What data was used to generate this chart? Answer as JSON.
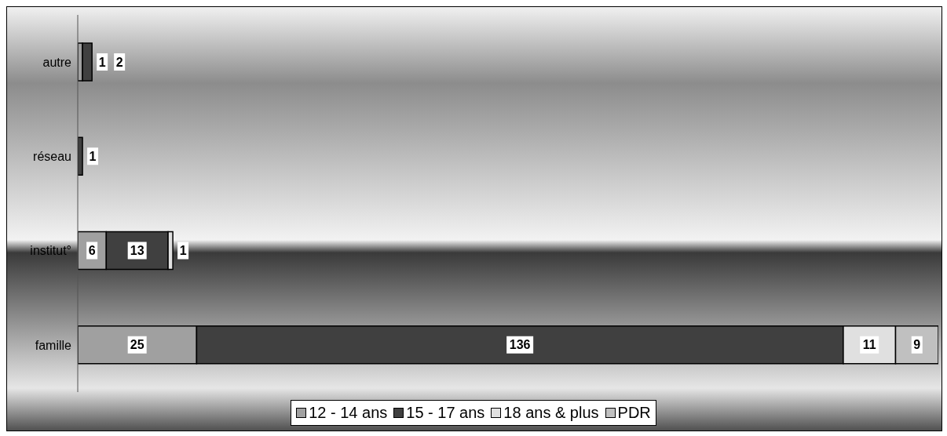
{
  "chart_data": {
    "type": "bar",
    "orientation": "horizontal",
    "stacked": true,
    "categories": [
      "autre",
      "réseau",
      "institut°",
      "famille"
    ],
    "series": [
      {
        "name": "12 - 14 ans",
        "color": "#a0a0a0",
        "values": [
          1,
          null,
          6,
          25
        ]
      },
      {
        "name": "15 - 17 ans",
        "color": "#404040",
        "values": [
          2,
          1,
          13,
          136
        ]
      },
      {
        "name": "18 ans & plus",
        "color": "#e0e0e0",
        "values": [
          null,
          null,
          1,
          11
        ]
      },
      {
        "name": "PDR",
        "color": "#c0c0c0",
        "values": [
          null,
          null,
          null,
          9
        ]
      }
    ],
    "xlim": [
      0,
      181
    ],
    "tick_labels": "y",
    "data_labels": true,
    "legend": "bottom"
  }
}
